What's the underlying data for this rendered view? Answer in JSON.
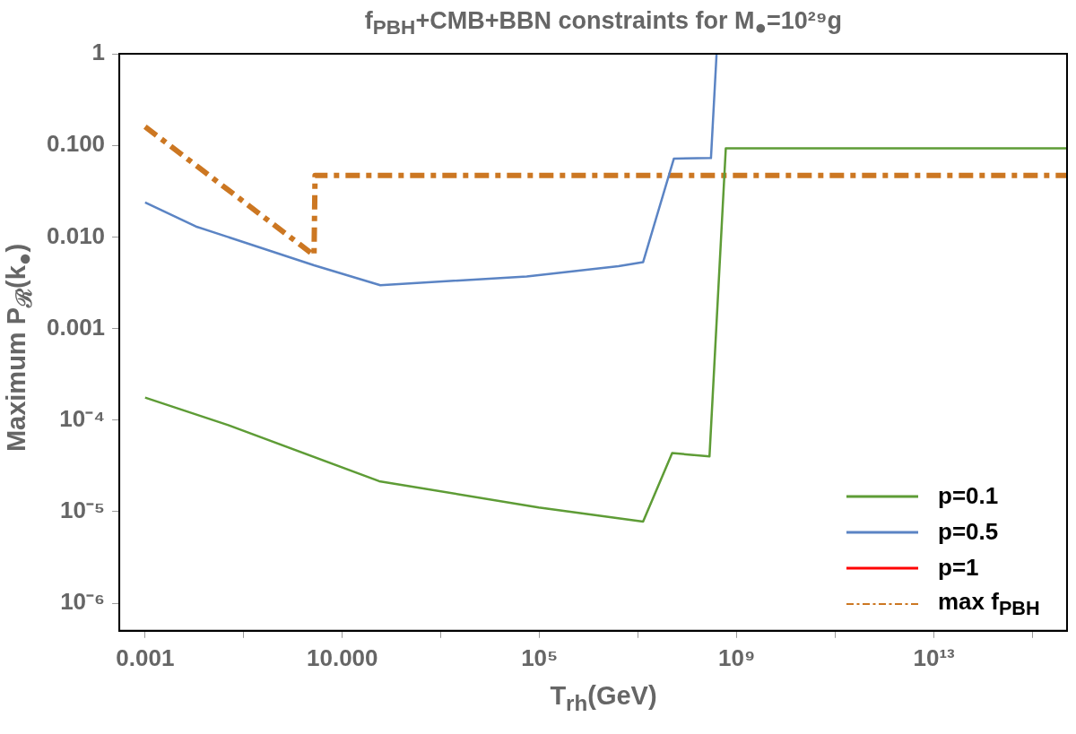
{
  "chart_data": {
    "type": "line",
    "title": "f$_{PBH}$+CMB+BBN constraints for M$_{●}$=10²⁹g",
    "xlabel": "T$_{rh}$(GeV)",
    "ylabel": "Maximum P$_{ℛ}$(k$_{●}$)",
    "log": "xy",
    "xlim": [
      0.0003,
      5000000000000000.0
    ],
    "ylim": [
      5e-07,
      1
    ],
    "xticks": [
      {
        "value": 0.001,
        "label": "0.001"
      },
      {
        "value": 0.1,
        "label": null
      },
      {
        "value": 10,
        "label": "10.000"
      },
      {
        "value": 1000,
        "label": null
      },
      {
        "value": 100000,
        "label": "10⁵"
      },
      {
        "value": 10000000,
        "label": null
      },
      {
        "value": 1000000000,
        "label": "10⁹"
      },
      {
        "value": 100000000000,
        "label": null
      },
      {
        "value": 10000000000000,
        "label": "10¹³"
      },
      {
        "value": 1000000000000000,
        "label": null
      }
    ],
    "yticks": [
      1,
      {
        "value": 0.1,
        "label": "0.100"
      },
      {
        "value": 0.01,
        "label": "0.010"
      },
      0.001,
      {
        "value": 0.0001,
        "label": "10⁻⁴"
      },
      {
        "value": 1e-05,
        "label": "10⁻⁵"
      },
      {
        "value": 1e-06,
        "label": "10⁻⁶"
      }
    ],
    "grid": false,
    "legend": "bottom right",
    "marker": "none",
    "series": [
      {
        "name": "p=0.1",
        "color": "#5e9c36",
        "line_style": "solid",
        "x": [
          0.001,
          0.0487,
          56,
          96000,
          12600000,
          49000000,
          280000000,
          600000000,
          5000000000000000.0
        ],
        "values": [
          0.000176,
          8.8e-05,
          2.15e-05,
          1.11e-05,
          7.8e-06,
          4.36e-05,
          4e-05,
          0.093,
          0.093
        ]
      },
      {
        "name": "p=0.5",
        "color": "#5b84c4",
        "line_style": "solid",
        "x": [
          0.001,
          0.0107,
          2.67,
          59,
          55000,
          4000000,
          12600000,
          53000000,
          300000000,
          390000000
        ],
        "values": [
          0.0238,
          0.013,
          0.0049,
          0.00297,
          0.0037,
          0.0048,
          0.0053,
          0.0715,
          0.0727,
          1
        ]
      },
      {
        "name": "p=1",
        "color": "#ff0000",
        "line_style": "solid"
      },
      {
        "name": "max f$_{PBH}$",
        "color": "#cc7722",
        "line_style": "dashed",
        "x": [
          0.001,
          2.67,
          2.8,
          5000000000000000.0
        ],
        "values": [
          0.16,
          0.0063,
          0.047,
          0.047
        ]
      }
    ]
  }
}
